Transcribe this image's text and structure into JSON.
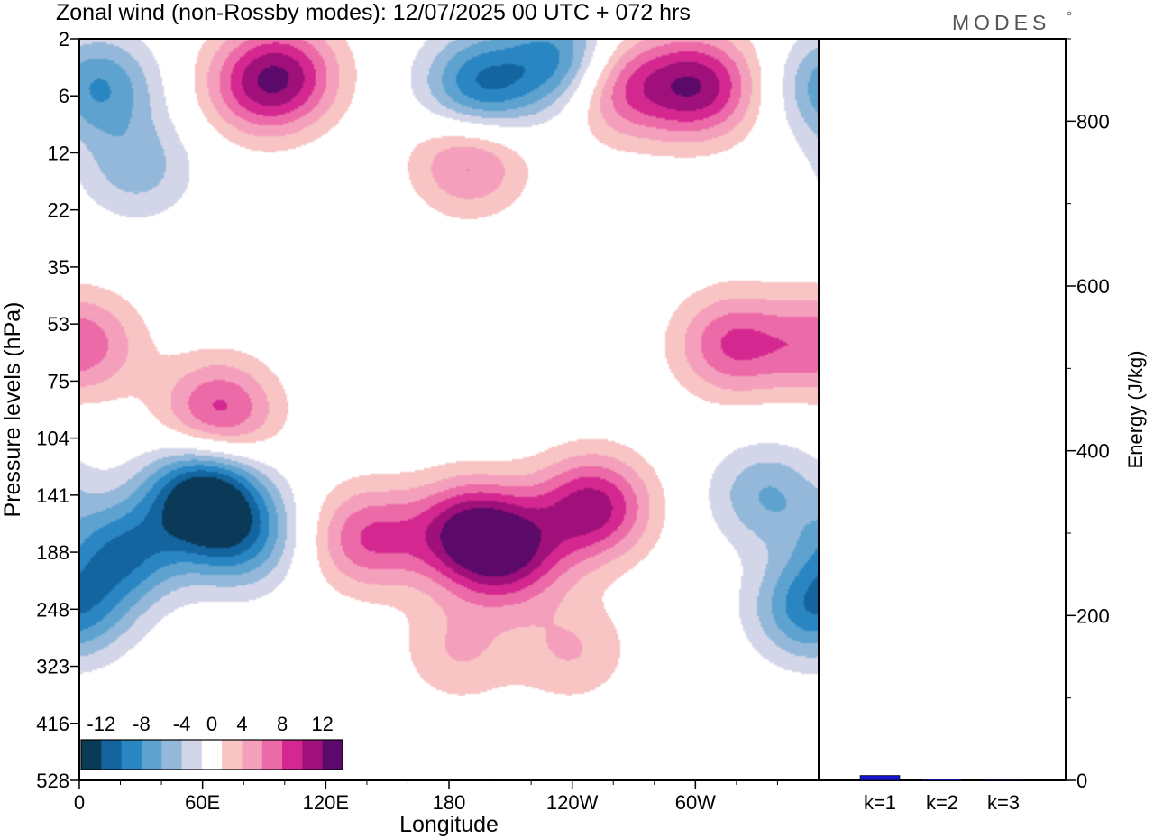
{
  "title": "Zonal wind (non-Rossby modes):  12/07/2025  00 UTC  + 072 hrs",
  "logo": "MODES",
  "chart_data": [
    {
      "type": "heatmap",
      "xlabel": "Longitude",
      "ylabel": "Pressure levels (hPa)",
      "x_ticks": [
        "0",
        "60E",
        "120E",
        "180",
        "120W",
        "60W"
      ],
      "y_ticks": [
        "2",
        "6",
        "12",
        "22",
        "35",
        "53",
        "75",
        "104",
        "141",
        "188",
        "248",
        "323",
        "416",
        "528"
      ],
      "colorbar": {
        "tick_labels": [
          "-12",
          "-8",
          "-4",
          "0",
          "4",
          "8",
          "12"
        ],
        "levels": [
          -14,
          -12,
          -10,
          -8,
          -6,
          -4,
          -2,
          2,
          4,
          6,
          8,
          10,
          12,
          14
        ],
        "colors": [
          "#0a3a58",
          "#1464a0",
          "#2a86c2",
          "#5ea2cf",
          "#93b8da",
          "#d3d6e9",
          "#ffffff",
          "#f8c4c4",
          "#f4a0bc",
          "#ec6aa8",
          "#d42890",
          "#a0107a",
          "#5c0a6a"
        ]
      },
      "features": [
        {
          "lon": 60,
          "level": 141,
          "value": -14
        },
        {
          "lon": 22,
          "level": 188,
          "value": -9
        },
        {
          "lon": 78,
          "level": 175,
          "value": -8
        },
        {
          "lon": 356,
          "level": 248,
          "value": -9
        },
        {
          "lon": 335,
          "level": 141,
          "value": -6
        },
        {
          "lon": 9,
          "level": 5,
          "value": -8
        },
        {
          "lon": 195,
          "level": 5,
          "value": -10
        },
        {
          "lon": 235,
          "level": 3,
          "value": -9
        },
        {
          "lon": 28,
          "level": 14,
          "value": -5
        },
        {
          "lon": 68,
          "level": 90,
          "value": 9
        },
        {
          "lon": 2,
          "level": 60,
          "value": 7
        },
        {
          "lon": 318,
          "level": 60,
          "value": 8
        },
        {
          "lon": 190,
          "level": 170,
          "value": 11
        },
        {
          "lon": 250,
          "level": 150,
          "value": 11
        },
        {
          "lon": 210,
          "level": 190,
          "value": 9
        },
        {
          "lon": 141,
          "level": 175,
          "value": 8
        },
        {
          "lon": 302,
          "level": 5,
          "value": 11
        },
        {
          "lon": 263,
          "level": 5,
          "value": 8
        },
        {
          "lon": 101,
          "level": 4,
          "value": 8
        },
        {
          "lon": 85,
          "level": 5,
          "value": 6
        },
        {
          "lon": 190,
          "level": 13,
          "value": 7
        },
        {
          "lon": 185,
          "level": 300,
          "value": 4
        },
        {
          "lon": 240,
          "level": 300,
          "value": 4
        }
      ]
    },
    {
      "type": "bar",
      "ylabel": "Energy (J/kg)",
      "categories": [
        "k=1",
        "k=2",
        "k=3"
      ],
      "values": [
        6,
        1.5,
        1
      ],
      "ylim": [
        0,
        900
      ],
      "y_ticks": [
        0,
        200,
        400,
        600,
        800
      ],
      "bar_color": "#1616c8"
    }
  ]
}
